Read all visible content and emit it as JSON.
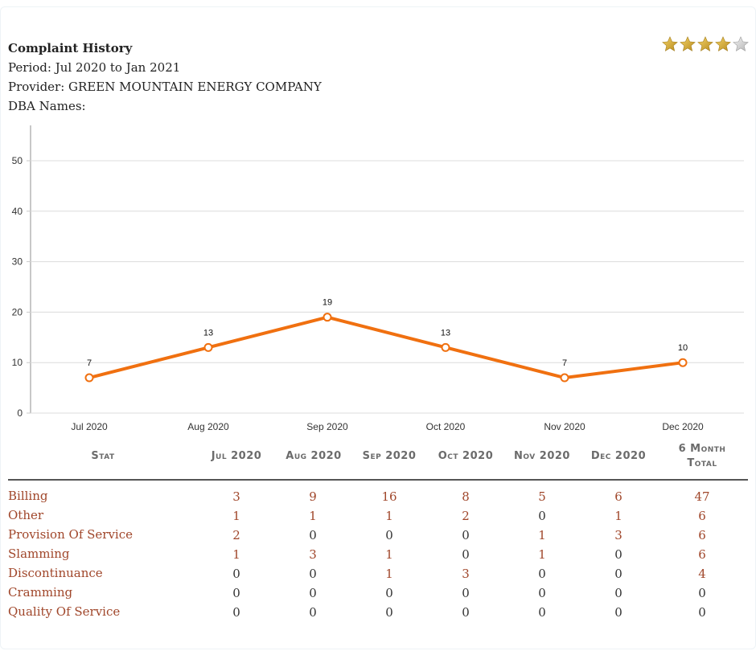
{
  "header": {
    "title": "Complaint History",
    "period": "Period: Jul 2020 to Jan 2021",
    "provider": "Provider: GREEN MOUNTAIN ENERGY COMPANY",
    "dba": "DBA Names:"
  },
  "rating": {
    "stars_filled": 4,
    "stars_total": 5
  },
  "chart_data": {
    "type": "line",
    "title": "",
    "xlabel": "",
    "ylabel": "",
    "categories": [
      "Jul 2020",
      "Aug 2020",
      "Sep 2020",
      "Oct 2020",
      "Nov 2020",
      "Dec 2020"
    ],
    "values": [
      7,
      13,
      19,
      13,
      7,
      10
    ],
    "data_labels": [
      "7",
      "13",
      "19",
      "13",
      "7",
      "10"
    ],
    "ylim": [
      0,
      50
    ],
    "yticks": [
      0,
      10,
      20,
      30,
      40,
      50
    ],
    "grid": true,
    "legend": "none",
    "line_color": "#f07010"
  },
  "table": {
    "headers": [
      "Stat",
      "Jul 2020",
      "Aug 2020",
      "Sep 2020",
      "Oct 2020",
      "Nov 2020",
      "Dec 2020",
      "6 Month",
      "Total"
    ],
    "rows": [
      {
        "label": "Billing",
        "values": [
          "3",
          "9",
          "16",
          "8",
          "5",
          "6",
          "47"
        ]
      },
      {
        "label": "Other",
        "values": [
          "1",
          "1",
          "1",
          "2",
          "0",
          "1",
          "6"
        ]
      },
      {
        "label": "Provision Of Service",
        "values": [
          "2",
          "0",
          "0",
          "0",
          "1",
          "3",
          "6"
        ]
      },
      {
        "label": "Slamming",
        "values": [
          "1",
          "3",
          "1",
          "0",
          "1",
          "0",
          "6"
        ]
      },
      {
        "label": "Discontinuance",
        "values": [
          "0",
          "0",
          "1",
          "3",
          "0",
          "0",
          "4"
        ]
      },
      {
        "label": "Cramming",
        "values": [
          "0",
          "0",
          "0",
          "0",
          "0",
          "0",
          "0"
        ]
      },
      {
        "label": "Quality Of Service",
        "values": [
          "0",
          "0",
          "0",
          "0",
          "0",
          "0",
          "0"
        ]
      }
    ]
  },
  "colors": {
    "accent": "#f07010",
    "label_text": "#a0462a",
    "header_text": "#6b6b6b"
  }
}
